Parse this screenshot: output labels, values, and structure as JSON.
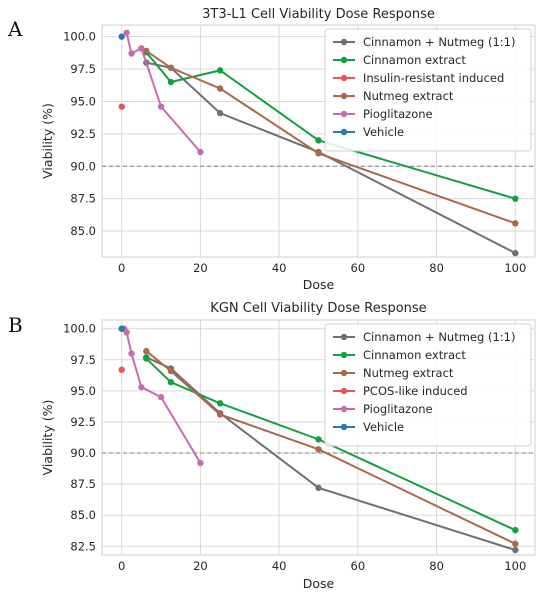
{
  "panels": [
    {
      "letter": "A",
      "chart_data": {
        "type": "line",
        "title": "3T3-L1 Cell Viability Dose Response",
        "xlabel": "Dose",
        "ylabel": "Viability (%)",
        "xlim": [
          -5,
          105
        ],
        "ylim": [
          83.0,
          100.9
        ],
        "xticks": [
          0,
          20,
          40,
          60,
          80,
          100
        ],
        "yticks": [
          85.0,
          87.5,
          90.0,
          92.5,
          95.0,
          97.5,
          100.0
        ],
        "ytick_labels": [
          "85.0",
          "87.5",
          "90.0",
          "92.5",
          "95.0",
          "97.5",
          "100.0"
        ],
        "reference_line_y": 90,
        "grid": true,
        "legend_position": "top-right",
        "series": [
          {
            "name": "Cinnamon + Nutmeg (1:1)",
            "color": "#707070",
            "x": [
              6.25,
              12.5,
              25,
              50,
              100
            ],
            "y": [
              98.0,
              97.6,
              94.1,
              91.1,
              83.3
            ]
          },
          {
            "name": "Cinnamon extract",
            "color": "#12a040",
            "x": [
              6.25,
              12.5,
              25,
              50,
              100
            ],
            "y": [
              98.8,
              96.5,
              97.4,
              92.0,
              87.5
            ]
          },
          {
            "name": "Insulin-resistant induced",
            "color": "#ea5454",
            "x": [
              0
            ],
            "y": [
              94.6
            ]
          },
          {
            "name": "Nutmeg extract",
            "color": "#a9694a",
            "x": [
              6.25,
              12.5,
              25,
              50,
              100
            ],
            "y": [
              98.9,
              97.6,
              96.0,
              91.0,
              85.6
            ]
          },
          {
            "name": "Pioglitazone",
            "color": "#c76cb0",
            "x": [
              1.25,
              2.5,
              5,
              10,
              20
            ],
            "y": [
              100.3,
              98.7,
              99.1,
              94.6,
              91.1
            ]
          },
          {
            "name": "Vehicle",
            "color": "#2a77b4",
            "x": [
              0
            ],
            "y": [
              100.0
            ]
          }
        ]
      }
    },
    {
      "letter": "B",
      "chart_data": {
        "type": "line",
        "title": "KGN Cell Viability Dose Response",
        "xlabel": "Dose",
        "ylabel": "Viability (%)",
        "xlim": [
          -5,
          105
        ],
        "ylim": [
          81.8,
          100.7
        ],
        "xticks": [
          0,
          20,
          40,
          60,
          80,
          100
        ],
        "yticks": [
          82.5,
          85.0,
          87.5,
          90.0,
          92.5,
          95.0,
          97.5,
          100.0
        ],
        "ytick_labels": [
          "82.5",
          "85.0",
          "87.5",
          "90.0",
          "92.5",
          "95.0",
          "97.5",
          "100.0"
        ],
        "reference_line_y": 90,
        "grid": true,
        "legend_position": "top-right",
        "series": [
          {
            "name": "Cinnamon + Nutmeg (1:1)",
            "color": "#707070",
            "x": [
              6.25,
              12.5,
              25,
              50,
              100
            ],
            "y": [
              97.7,
              96.8,
              93.2,
              87.2,
              82.2
            ]
          },
          {
            "name": "Cinnamon extract",
            "color": "#12a040",
            "x": [
              6.25,
              12.5,
              25,
              50,
              100
            ],
            "y": [
              97.6,
              95.7,
              94.0,
              91.1,
              83.8
            ]
          },
          {
            "name": "Nutmeg extract",
            "color": "#a9694a",
            "x": [
              6.25,
              12.5,
              25,
              50,
              100
            ],
            "y": [
              98.2,
              96.6,
              93.1,
              90.3,
              82.7
            ]
          },
          {
            "name": "PCOS-like induced",
            "color": "#ea5454",
            "x": [
              0
            ],
            "y": [
              96.7
            ]
          },
          {
            "name": "Pioglitazone",
            "color": "#c76cb0",
            "x": [
              0.625,
              1.25,
              2.5,
              5,
              10,
              20
            ],
            "y": [
              100.0,
              99.7,
              98.0,
              95.3,
              94.5,
              89.2
            ]
          },
          {
            "name": "Vehicle",
            "color": "#2a77b4",
            "x": [
              0
            ],
            "y": [
              100.0
            ]
          }
        ]
      }
    }
  ]
}
